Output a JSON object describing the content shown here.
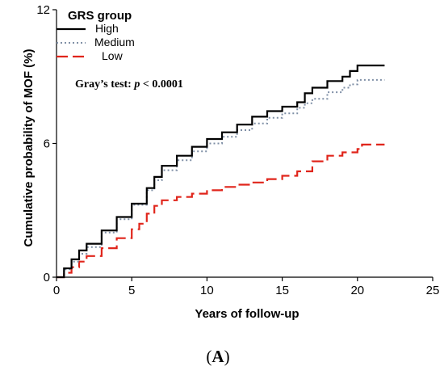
{
  "chart_data": {
    "type": "line",
    "xlabel": "Years of follow-up",
    "ylabel": "Cumulative probability of MOF (%)",
    "xlim": [
      0,
      25
    ],
    "ylim": [
      0,
      12
    ],
    "x_ticks": [
      "0",
      "5",
      "10",
      "15",
      "20",
      "25"
    ],
    "y_ticks": [
      "0",
      "6",
      "12"
    ],
    "grid": false,
    "legend": {
      "title": "GRS group",
      "placement": "top-left",
      "entries": [
        "High",
        "Medium",
        "Low"
      ]
    },
    "annotation": {
      "prefix": "Gray’s test: ",
      "p": "p",
      "suffix": " < 0.0001"
    },
    "panel_label": {
      "open": "(",
      "letter": "A",
      "close": ")"
    },
    "series": [
      {
        "name": "High",
        "color": "#000000",
        "style": "solid",
        "x": [
          0,
          0.5,
          1,
          1.5,
          2,
          3,
          4,
          5,
          6,
          6.5,
          7,
          8,
          9,
          10,
          11,
          12,
          13,
          14,
          15,
          16,
          16.5,
          17,
          18,
          19,
          19.5,
          20,
          21,
          21.8
        ],
        "y": [
          0,
          0.4,
          0.8,
          1.2,
          1.5,
          2.1,
          2.7,
          3.3,
          4.0,
          4.5,
          5.0,
          5.45,
          5.85,
          6.2,
          6.5,
          6.85,
          7.2,
          7.45,
          7.65,
          7.85,
          8.25,
          8.5,
          8.8,
          9.0,
          9.25,
          9.5,
          9.5,
          9.5
        ]
      },
      {
        "name": "Medium",
        "color": "#7f8fa6",
        "style": "dotted",
        "x": [
          0,
          0.5,
          1,
          1.5,
          2,
          3,
          4,
          5,
          6,
          6.5,
          7,
          8,
          9,
          10,
          11,
          12,
          13,
          14,
          15,
          16,
          16.5,
          17,
          18,
          19,
          19.5,
          20,
          21,
          21.8
        ],
        "y": [
          0,
          0.35,
          0.7,
          1.05,
          1.35,
          2.0,
          2.6,
          3.25,
          3.9,
          4.35,
          4.8,
          5.25,
          5.65,
          6.0,
          6.3,
          6.6,
          6.9,
          7.15,
          7.35,
          7.6,
          7.8,
          8.0,
          8.3,
          8.5,
          8.65,
          8.85,
          8.85,
          8.85
        ]
      },
      {
        "name": "Low",
        "color": "#e0251b",
        "style": "dashed",
        "x": [
          0,
          0.5,
          1,
          1.5,
          2,
          3,
          4,
          5,
          5.5,
          6,
          6.5,
          7,
          8,
          9,
          10,
          11,
          12,
          13,
          14,
          15,
          16,
          17,
          18,
          19,
          20,
          20.3,
          21,
          21.8
        ],
        "y": [
          0,
          0.2,
          0.45,
          0.7,
          0.95,
          1.3,
          1.75,
          2.15,
          2.4,
          2.85,
          3.2,
          3.45,
          3.6,
          3.75,
          3.9,
          4.05,
          4.15,
          4.25,
          4.4,
          4.55,
          4.75,
          5.2,
          5.45,
          5.6,
          5.75,
          5.95,
          5.95,
          5.95
        ]
      }
    ]
  }
}
